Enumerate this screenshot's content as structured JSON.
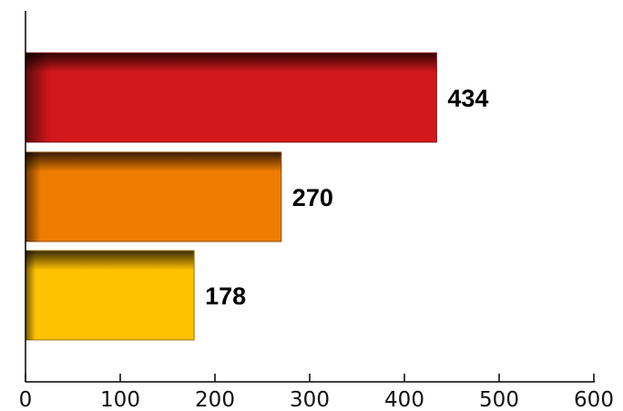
{
  "colors": {
    "background": "#ffffff",
    "axis": "#000000",
    "bar_top_red": "#d3181b",
    "bar_mid_orange": "#ef7d00",
    "bar_bottom_yellow": "#fec200"
  },
  "chart_data": {
    "type": "bar",
    "orientation": "horizontal",
    "title": "",
    "xlabel": "",
    "ylabel": "",
    "categories": [
      "",
      "",
      ""
    ],
    "values": [
      434,
      270,
      178
    ],
    "value_labels": [
      "434",
      "270",
      "178"
    ],
    "bar_colors": [
      "#d3181b",
      "#ef7d00",
      "#fec200"
    ],
    "xlim": [
      0,
      600
    ],
    "xticks": [
      0,
      100,
      200,
      300,
      400,
      500,
      600
    ],
    "xtick_labels": [
      "0",
      "100",
      "200",
      "300",
      "400",
      "500",
      "600"
    ],
    "grid": false,
    "legend": "none"
  }
}
